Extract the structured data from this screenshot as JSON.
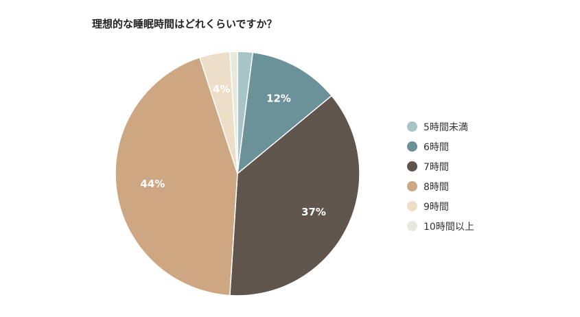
{
  "chart_data": {
    "type": "pie",
    "title": "理想的な睡眠時間はどれくらいですか？",
    "categories": [
      "5時間未満",
      "6時間",
      "7時間",
      "8時間",
      "9時間",
      "10時間以上"
    ],
    "values": [
      2,
      12,
      37,
      44,
      4,
      1
    ],
    "data_labels": [
      "",
      "12%",
      "37%",
      "44%",
      "4%",
      ""
    ],
    "colors": [
      "#a7c4c6",
      "#6b9199",
      "#5f554d",
      "#cda782",
      "#eddec7",
      "#e7e9dd"
    ],
    "start_angle_deg": 0,
    "direction": "clockwise",
    "legend_position": "right"
  }
}
